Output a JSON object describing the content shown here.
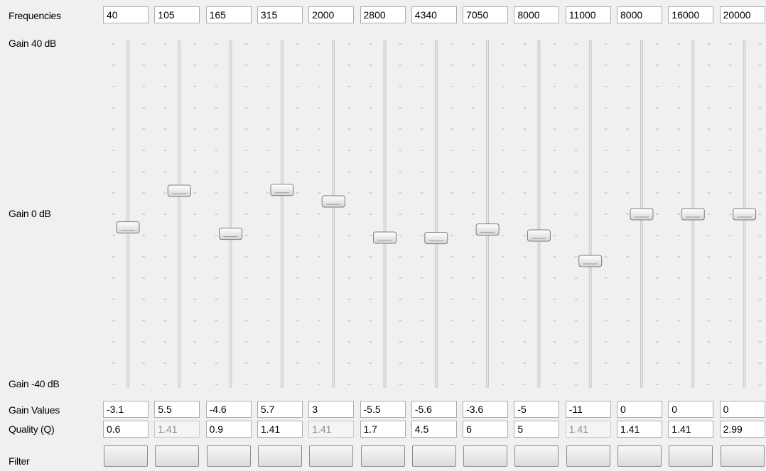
{
  "labels": {
    "frequencies": "Frequencies",
    "gain_values": "Gain Values",
    "quality": "Quality (Q)",
    "filter": "Filter"
  },
  "gain_scale": [
    {
      "value": 40,
      "label": "Gain 40 dB"
    },
    {
      "value": 0,
      "label": "Gain 0 dB"
    },
    {
      "value": -40,
      "label": "Gain -40 dB"
    }
  ],
  "bands": {
    "frequencies": [
      40,
      105,
      165,
      315,
      2000,
      2800,
      4340,
      7050,
      8000,
      11000,
      8000,
      16000,
      20000
    ],
    "gains": [
      -3.1,
      5.5,
      -4.6,
      5.7,
      3,
      -5.5,
      -5.6,
      -3.6,
      -5,
      -11,
      0,
      0,
      0
    ],
    "quality": [
      0.6,
      1.41,
      0.9,
      1.41,
      1.41,
      1.7,
      4.5,
      6,
      5,
      1.41,
      1.41,
      1.41,
      2.99
    ]
  }
}
